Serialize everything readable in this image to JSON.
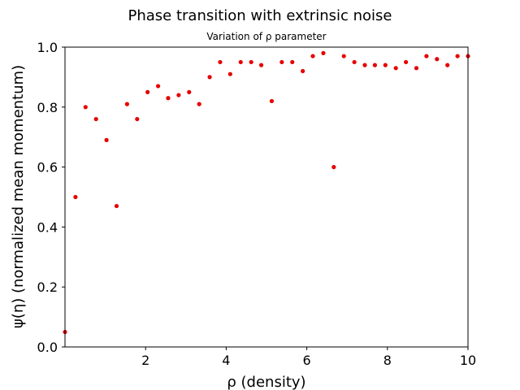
{
  "chart_data": {
    "type": "scatter",
    "suptitle": "Phase transition with extrinsic noise",
    "title": "Variation of ρ parameter",
    "xlabel": "ρ (density)",
    "ylabel": "ψ(η) (normalized mean momentum)",
    "xlim": [
      0.0,
      10.0
    ],
    "ylim": [
      0.0,
      1.0
    ],
    "xticks": [
      2,
      4,
      6,
      8,
      10
    ],
    "xtick_labels": [
      "2",
      "4",
      "6",
      "8",
      "10"
    ],
    "yticks": [
      0.0,
      0.2,
      0.4,
      0.6,
      0.8,
      1.0
    ],
    "ytick_labels": [
      "0.0",
      "0.2",
      "0.4",
      "0.6",
      "0.8",
      "1.0"
    ],
    "grid": false,
    "marker_color": "#e60000",
    "series": [
      {
        "name": "psi",
        "x": [
          0.0,
          0.26,
          0.51,
          0.77,
          1.03,
          1.28,
          1.54,
          1.79,
          2.05,
          2.31,
          2.56,
          2.82,
          3.08,
          3.33,
          3.59,
          3.85,
          4.1,
          4.36,
          4.62,
          4.87,
          5.13,
          5.38,
          5.64,
          5.9,
          6.15,
          6.41,
          6.67,
          6.92,
          7.18,
          7.44,
          7.69,
          7.95,
          8.21,
          8.46,
          8.72,
          8.97,
          9.23,
          9.49,
          9.74,
          10.0
        ],
        "y": [
          0.05,
          0.5,
          0.8,
          0.76,
          0.69,
          0.47,
          0.81,
          0.76,
          0.85,
          0.87,
          0.83,
          0.84,
          0.85,
          0.81,
          0.9,
          0.95,
          0.91,
          0.95,
          0.95,
          0.94,
          0.82,
          0.95,
          0.95,
          0.92,
          0.97,
          0.98,
          0.6,
          0.97,
          0.95,
          0.94,
          0.94,
          0.94,
          0.93,
          0.95,
          0.93,
          0.97,
          0.96,
          0.94,
          0.97,
          0.97
        ]
      }
    ]
  }
}
